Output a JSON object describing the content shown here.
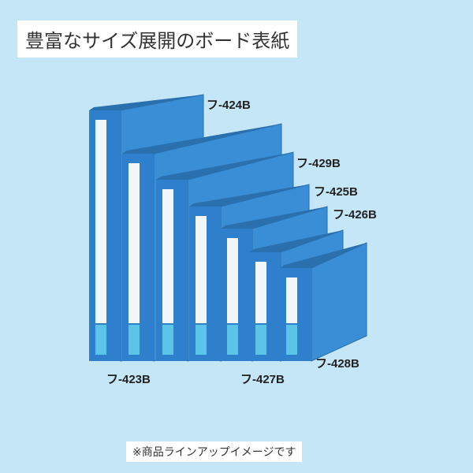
{
  "title": "豊富なサイズ展開のボード表紙",
  "labels": [
    "フ-424B",
    "フ-429B",
    "フ-425B",
    "フ-426B",
    "フ-423B",
    "フ-427B",
    "フ-428B"
  ],
  "note": "※商品ラインアップイメージです"
}
